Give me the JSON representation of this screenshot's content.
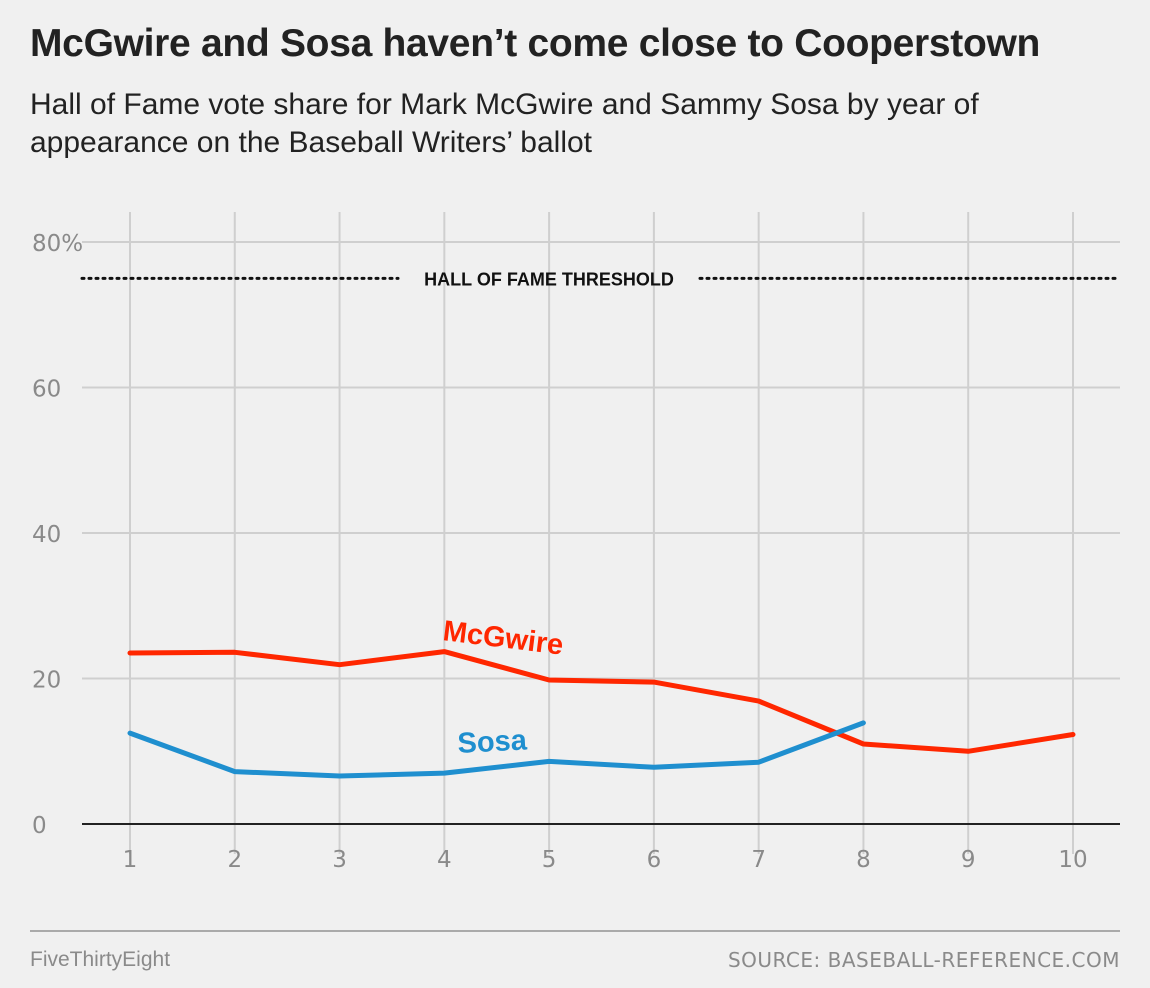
{
  "header": {
    "title": "McGwire and Sosa haven’t come close to Cooperstown",
    "subtitle": "Hall of Fame vote share for Mark McGwire and Sammy Sosa by year of appearance on the Baseball Writers’ ballot"
  },
  "chart_data": {
    "type": "line",
    "x": [
      1,
      2,
      3,
      4,
      5,
      6,
      7,
      8,
      9,
      10
    ],
    "xlim": [
      1,
      10
    ],
    "ylim": [
      0,
      80
    ],
    "yticks": [
      0,
      20,
      40,
      60,
      80
    ],
    "ytick_labels": [
      "0",
      "20",
      "40",
      "60",
      "80%"
    ],
    "xtick_labels": [
      "1",
      "2",
      "3",
      "4",
      "5",
      "6",
      "7",
      "8",
      "9",
      "10"
    ],
    "grid": true,
    "series": [
      {
        "name": "McGwire",
        "color": "#ff2700",
        "x": [
          1,
          2,
          3,
          4,
          5,
          6,
          7,
          8,
          9,
          10
        ],
        "values": [
          23.5,
          23.6,
          21.9,
          23.7,
          19.8,
          19.5,
          16.9,
          11.0,
          10.0,
          12.3
        ]
      },
      {
        "name": "Sosa",
        "color": "#1f8fcf",
        "x": [
          1,
          2,
          3,
          4,
          5,
          6,
          7,
          8
        ],
        "values": [
          12.5,
          7.2,
          6.6,
          7.0,
          8.6,
          7.8,
          8.5,
          13.9
        ]
      }
    ],
    "annotations": [
      {
        "text": "HALL OF FAME THRESHOLD",
        "y": 75,
        "style": "dotted-line"
      }
    ]
  },
  "footer": {
    "brand": "FiveThirtyEight",
    "source": "SOURCE: BASEBALL-REFERENCE.COM"
  }
}
